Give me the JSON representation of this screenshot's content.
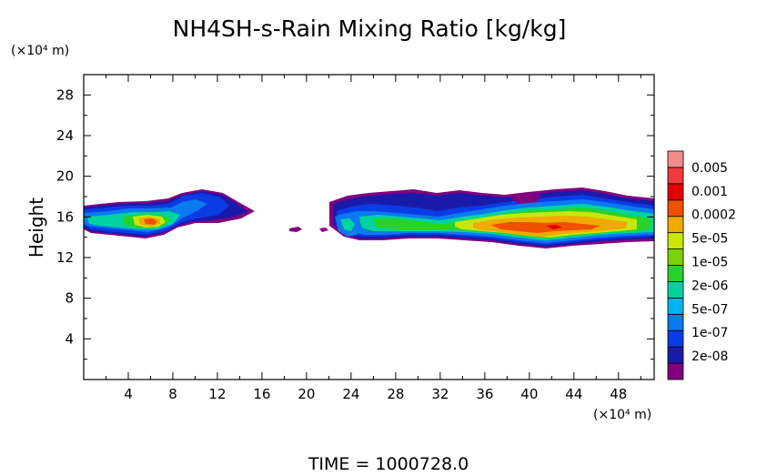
{
  "chart_data": {
    "type": "heatmap",
    "title": "NH4SH-s-Rain Mixing Ratio [kg/kg]",
    "ylabel": "Height",
    "x_scale_label": "(×10⁴ m)",
    "y_scale_label": "(×10⁴ m)",
    "footer": "TIME  =  1000728.0",
    "xlim": [
      0,
      51.2
    ],
    "ylim": [
      0,
      30
    ],
    "x_ticks": [
      "4",
      "8",
      "12",
      "16",
      "20",
      "24",
      "28",
      "32",
      "36",
      "40",
      "44",
      "48"
    ],
    "y_ticks": [
      "4",
      "8",
      "12",
      "16",
      "20",
      "24",
      "28"
    ],
    "colorbar": {
      "labels": [
        "0.005",
        "0.001",
        "0.0002",
        "5e-05",
        "1e-05",
        "2e-06",
        "5e-07",
        "1e-07",
        "2e-08"
      ],
      "colors": [
        "#800080",
        "#1a1aaa",
        "#0a3ce6",
        "#0a7af0",
        "#00b4f0",
        "#00d2a0",
        "#28d228",
        "#7ad20a",
        "#c8e60a",
        "#f0aa00",
        "#f05000",
        "#e60000",
        "#f03c3c",
        "#f08c8c"
      ]
    },
    "regions": [
      {
        "name": "left-cloud",
        "x": [
          0,
          16.5
        ],
        "y": [
          14,
          18.8
        ],
        "peak": "0.0002",
        "peak_x": 6.5,
        "peak_y": 15.5
      },
      {
        "name": "right-cloud",
        "x": [
          21.5,
          51.2
        ],
        "y": [
          13,
          19
        ],
        "peak": "0.0002",
        "peak_x": 42,
        "peak_y": 15
      }
    ]
  }
}
